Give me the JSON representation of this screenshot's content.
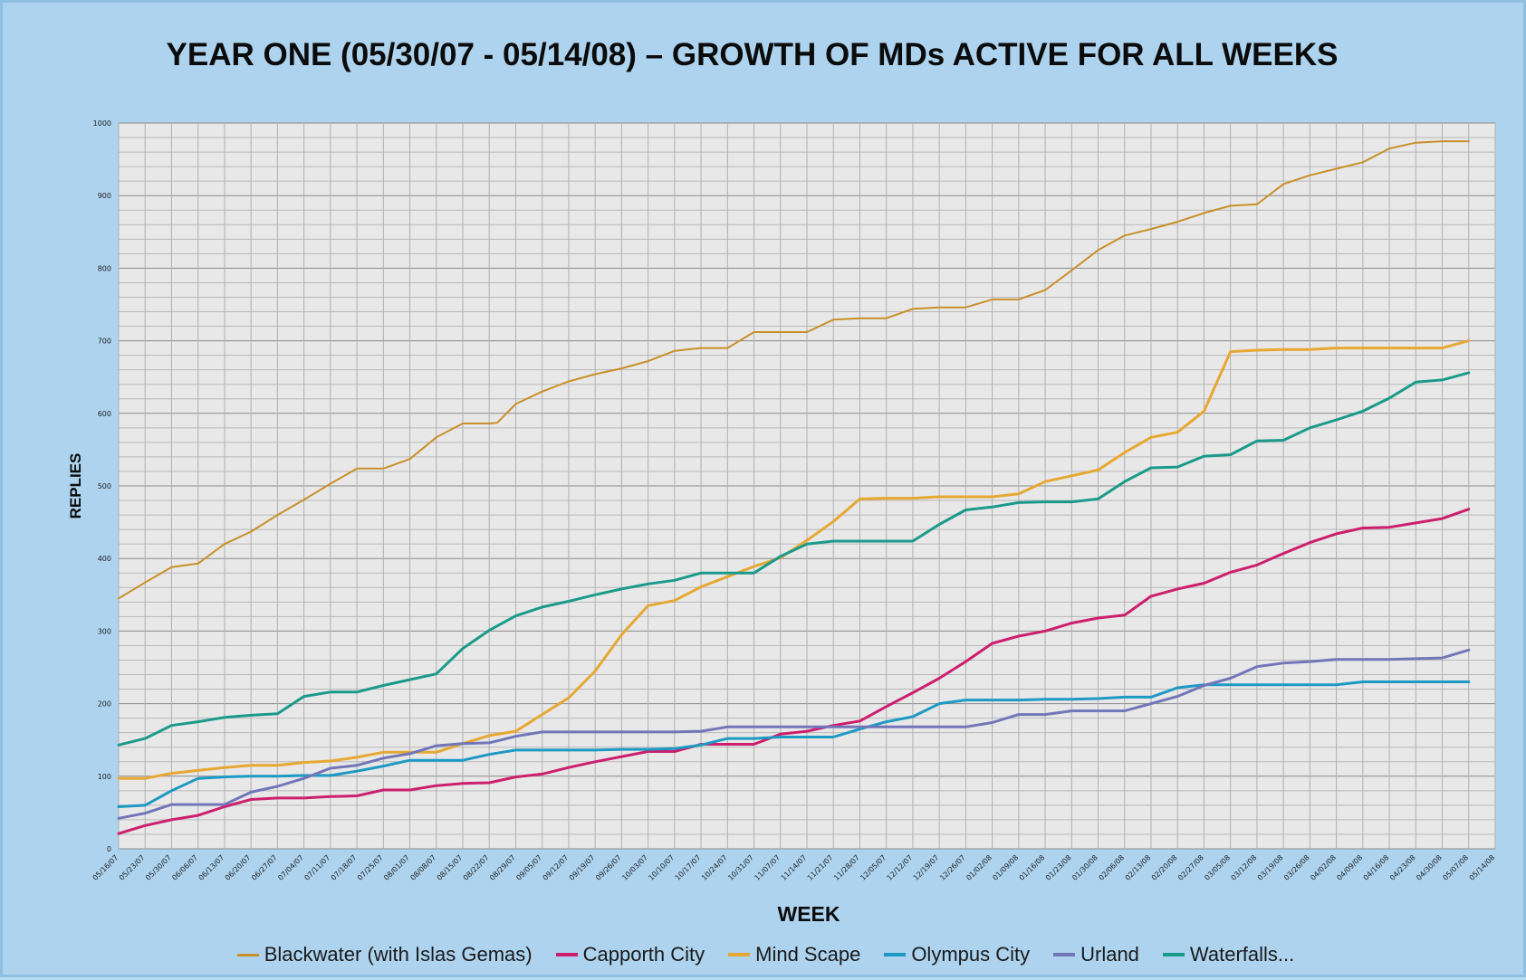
{
  "chart_data": {
    "type": "line",
    "title": "YEAR ONE (05/30/07 - 05/14/08) – GROWTH OF MDs ACTIVE FOR ALL WEEKS",
    "xlabel": "WEEK",
    "ylabel": "REPLIES",
    "ylim": [
      0,
      1000
    ],
    "yticks": [
      "0",
      "100",
      "200",
      "300",
      "400",
      "500",
      "600",
      "700",
      "800",
      "900",
      "1000"
    ],
    "grid": true,
    "legend_position": "bottom",
    "categories": [
      "05/16/07",
      "05/23/07",
      "05/30/07",
      "06/06/07",
      "06/13/07",
      "06/20/07",
      "06/27/07",
      "07/04/07",
      "07/11/07",
      "07/18/07",
      "07/25/07",
      "08/01/07",
      "08/08/07",
      "08/15/07",
      "08/22/07",
      "08/29/07",
      "09/05/07",
      "09/12/07",
      "09/19/07",
      "09/26/07",
      "10/03/07",
      "10/10/07",
      "10/17/07",
      "10/24/07",
      "10/31/07",
      "11/07/07",
      "11/14/07",
      "11/21/07",
      "11/28/07",
      "12/05/07",
      "12/12/07",
      "12/19/07",
      "12/26/07",
      "01/02/08",
      "01/09/08",
      "01/16/08",
      "01/23/08",
      "01/30/08",
      "02/06/08",
      "02/13/08",
      "02/20/08",
      "02/27/08",
      "03/05/08",
      "03/12/08",
      "03/19/08",
      "03/26/08",
      "04/02/08",
      "04/09/08",
      "04/16/08",
      "04/23/08",
      "04/30/08",
      "05/07/08",
      "05/14/08"
    ],
    "series": [
      {
        "name": "Blackwater (with Islas Gemas)",
        "color": "#c8902a",
        "width": 2,
        "x": [
          0,
          1,
          2,
          3,
          4,
          5,
          6,
          7,
          8,
          9,
          10,
          11,
          12,
          13,
          14,
          14.3,
          15,
          16,
          17,
          18,
          19,
          20,
          21,
          22,
          23,
          24,
          25,
          26,
          27,
          28,
          29,
          30,
          31,
          32,
          33,
          34,
          35,
          36,
          37,
          38,
          39,
          40,
          41,
          42,
          43,
          44,
          45,
          46,
          47,
          48,
          49,
          50,
          51
        ],
        "values": [
          345,
          367,
          388,
          393,
          420,
          437,
          460,
          481,
          503,
          524,
          524,
          537,
          567,
          586,
          586,
          587,
          613,
          630,
          644,
          654,
          662,
          672,
          686,
          690,
          690,
          712,
          712,
          712,
          729,
          731,
          731,
          744,
          746,
          746,
          757,
          757,
          770,
          797,
          825,
          845,
          854,
          864,
          876,
          886,
          888,
          916,
          928,
          937,
          946,
          965,
          973,
          975,
          975
        ]
      },
      {
        "name": "Capporth City",
        "color": "#cc1f6e",
        "width": 3,
        "x": [
          0,
          1,
          2,
          3,
          4,
          5,
          6,
          7,
          8,
          9,
          10,
          11,
          12,
          13,
          14,
          15,
          16,
          17,
          18,
          19,
          20,
          21,
          22,
          23,
          24,
          25,
          26,
          27,
          28,
          29,
          30,
          31,
          32,
          33,
          34,
          35,
          36,
          37,
          38,
          39,
          40,
          41,
          42,
          43,
          44,
          45,
          46,
          47,
          48,
          49,
          50,
          51
        ],
        "values": [
          21,
          32,
          40,
          46,
          58,
          68,
          70,
          70,
          72,
          73,
          81,
          81,
          87,
          90,
          91,
          99,
          103,
          112,
          120,
          127,
          134,
          134,
          144,
          144,
          144,
          158,
          162,
          170,
          176,
          196,
          215,
          235,
          258,
          283,
          293,
          300,
          311,
          318,
          322,
          348,
          358,
          366,
          381,
          391,
          407,
          422,
          434,
          442,
          443,
          449,
          455,
          468
        ]
      },
      {
        "name": "Mind Scape",
        "color": "#e6a832",
        "width": 3,
        "x": [
          0,
          1,
          2,
          3,
          4,
          5,
          6,
          7,
          8,
          9,
          10,
          11,
          12,
          13,
          14,
          15,
          16,
          17,
          18,
          19,
          20,
          21,
          22,
          23,
          24,
          25,
          26,
          27,
          28,
          29,
          30,
          31,
          32,
          33,
          34,
          35,
          36,
          37,
          38,
          39,
          40,
          41,
          42,
          43,
          44,
          45,
          46,
          47,
          48,
          49,
          50,
          51
        ],
        "values": [
          97,
          97,
          104,
          108,
          112,
          115,
          115,
          119,
          121,
          126,
          133,
          133,
          133,
          145,
          156,
          162,
          185,
          208,
          245,
          295,
          335,
          342,
          361,
          375,
          389,
          401,
          425,
          451,
          482,
          483,
          483,
          485,
          485,
          485,
          489,
          506,
          514,
          522,
          546,
          567,
          574,
          603,
          685,
          687,
          688,
          688,
          690,
          690,
          690,
          690,
          690,
          700
        ]
      },
      {
        "name": "Olympus City",
        "color": "#1d9ac4",
        "width": 3,
        "x": [
          0,
          1,
          2,
          3,
          4,
          5,
          6,
          7,
          8,
          9,
          10,
          11,
          12,
          13,
          14,
          15,
          16,
          17,
          18,
          19,
          20,
          21,
          22,
          23,
          24,
          25,
          26,
          27,
          28,
          29,
          30,
          31,
          32,
          33,
          34,
          35,
          36,
          37,
          38,
          39,
          40,
          41,
          42,
          43,
          44,
          45,
          46,
          47,
          48,
          49,
          50,
          51
        ],
        "values": [
          58,
          60,
          80,
          97,
          99,
          100,
          100,
          101,
          101,
          107,
          114,
          122,
          122,
          122,
          130,
          136,
          136,
          136,
          136,
          137,
          137,
          138,
          143,
          152,
          152,
          154,
          154,
          154,
          165,
          175,
          182,
          200,
          205,
          205,
          205,
          206,
          206,
          207,
          209,
          209,
          222,
          226,
          226,
          226,
          226,
          226,
          226,
          230,
          230,
          230,
          230,
          230
        ]
      },
      {
        "name": "Urland",
        "color": "#7276b8",
        "width": 3,
        "x": [
          0,
          1,
          2,
          3,
          4,
          5,
          6,
          7,
          8,
          9,
          10,
          11,
          12,
          13,
          14,
          15,
          16,
          17,
          18,
          19,
          20,
          21,
          22,
          23,
          24,
          25,
          26,
          27,
          28,
          29,
          30,
          31,
          32,
          33,
          34,
          35,
          36,
          37,
          38,
          39,
          40,
          41,
          42,
          43,
          44,
          45,
          46,
          47,
          48,
          49,
          50,
          51
        ],
        "values": [
          42,
          49,
          61,
          61,
          61,
          78,
          86,
          97,
          111,
          115,
          125,
          131,
          142,
          145,
          146,
          155,
          161,
          161,
          161,
          161,
          161,
          161,
          162,
          168,
          168,
          168,
          168,
          168,
          168,
          168,
          168,
          168,
          168,
          174,
          185,
          185,
          190,
          190,
          190,
          200,
          210,
          225,
          235,
          251,
          256,
          258,
          261,
          261,
          261,
          262,
          263,
          274
        ]
      },
      {
        "name": "Waterfalls...",
        "color": "#1a9a8a",
        "width": 3,
        "x": [
          0,
          1,
          2,
          3,
          4,
          5,
          6,
          7,
          8,
          9,
          10,
          11,
          12,
          13,
          14,
          15,
          16,
          17,
          18,
          19,
          20,
          21,
          22,
          23,
          24,
          25,
          26,
          27,
          28,
          29,
          30,
          31,
          32,
          33,
          34,
          35,
          36,
          37,
          38,
          39,
          40,
          41,
          42,
          43,
          44,
          45,
          46,
          47,
          48,
          49,
          50,
          51
        ],
        "values": [
          143,
          152,
          170,
          175,
          181,
          184,
          186,
          210,
          216,
          216,
          225,
          233,
          241,
          276,
          301,
          321,
          333,
          341,
          350,
          358,
          365,
          370,
          380,
          380,
          380,
          403,
          420,
          424,
          424,
          424,
          424,
          447,
          467,
          471,
          477,
          478,
          478,
          482,
          506,
          525,
          526,
          541,
          543,
          562,
          563,
          580,
          591,
          603,
          621,
          643,
          646,
          656
        ]
      }
    ]
  }
}
